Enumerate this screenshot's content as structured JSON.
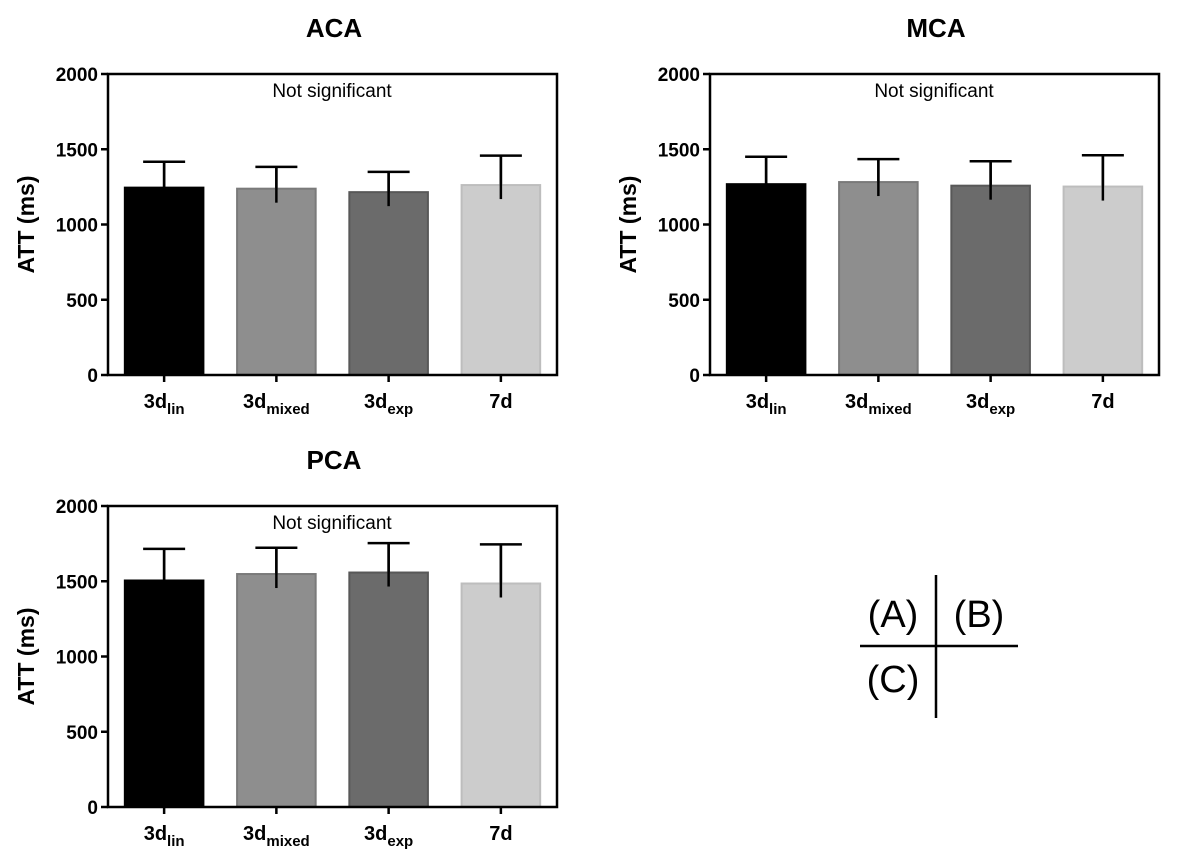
{
  "figure_key": {
    "a": "(A)",
    "b": "(B)",
    "c": "(C)"
  },
  "chart_data": [
    {
      "panel": "A",
      "type": "bar",
      "title": "ACA",
      "ylabel": "ATT (ms)",
      "xlabel": "",
      "ylim": [
        0,
        2000
      ],
      "yticks": [
        0,
        500,
        1000,
        1500,
        2000
      ],
      "annotation": "Not significant",
      "categories": [
        {
          "main": "3d",
          "sub": "lin"
        },
        {
          "main": "3d",
          "sub": "mixed"
        },
        {
          "main": "3d",
          "sub": "exp"
        },
        {
          "main": "7d",
          "sub": ""
        }
      ],
      "values": [
        1245,
        1238,
        1215,
        1262
      ],
      "errors": [
        172,
        145,
        135,
        196
      ],
      "colors": [
        "#000000",
        "#8e8e8e",
        "#6b6b6b",
        "#cccccc"
      ],
      "grid": false
    },
    {
      "panel": "B",
      "type": "bar",
      "title": "MCA",
      "ylabel": "ATT (ms)",
      "xlabel": "",
      "ylim": [
        0,
        2000
      ],
      "yticks": [
        0,
        500,
        1000,
        1500,
        2000
      ],
      "annotation": "Not significant",
      "categories": [
        {
          "main": "3d",
          "sub": "lin"
        },
        {
          "main": "3d",
          "sub": "mixed"
        },
        {
          "main": "3d",
          "sub": "exp"
        },
        {
          "main": "7d",
          "sub": ""
        }
      ],
      "values": [
        1268,
        1282,
        1258,
        1252
      ],
      "errors": [
        182,
        152,
        162,
        208
      ],
      "colors": [
        "#000000",
        "#8e8e8e",
        "#6b6b6b",
        "#cccccc"
      ],
      "grid": false
    },
    {
      "panel": "C",
      "type": "bar",
      "title": "PCA",
      "ylabel": "ATT (ms)",
      "xlabel": "",
      "ylim": [
        0,
        2000
      ],
      "yticks": [
        0,
        500,
        1000,
        1500,
        2000
      ],
      "annotation": "Not significant",
      "categories": [
        {
          "main": "3d",
          "sub": "lin"
        },
        {
          "main": "3d",
          "sub": "mixed"
        },
        {
          "main": "3d",
          "sub": "exp"
        },
        {
          "main": "7d",
          "sub": ""
        }
      ],
      "values": [
        1505,
        1548,
        1558,
        1485
      ],
      "errors": [
        210,
        175,
        195,
        260
      ],
      "colors": [
        "#000000",
        "#8e8e8e",
        "#6b6b6b",
        "#cccccc"
      ],
      "grid": false
    }
  ]
}
